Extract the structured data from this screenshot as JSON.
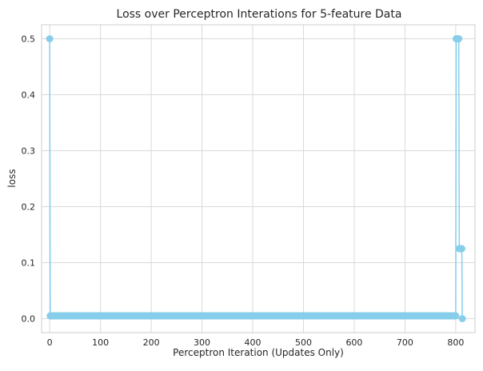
{
  "chart_data": {
    "type": "line",
    "title": "Loss over Perceptron Interations for 5-feature Data",
    "xlabel": "Perceptron Iteration (Updates Only)",
    "ylabel": "loss",
    "xlim": [
      -16,
      838
    ],
    "ylim": [
      -0.025,
      0.525
    ],
    "xticks": [
      0,
      100,
      200,
      300,
      400,
      500,
      600,
      700,
      800
    ],
    "yticks": [
      0.0,
      0.1,
      0.2,
      0.3,
      0.4,
      0.5
    ],
    "ytick_labels": [
      "0.0",
      "0.1",
      "0.2",
      "0.3",
      "0.4",
      "0.5"
    ],
    "grid": true,
    "legend": "none",
    "series": [
      {
        "color": "#87ceeb",
        "marker": "circle",
        "segments": [
          {
            "x_start": 0,
            "x_end": 0,
            "y": 0.5
          },
          {
            "x_start": 1,
            "x_end": 800,
            "y": 0.005
          },
          {
            "x_start": 801,
            "x_end": 806,
            "y": 0.5
          },
          {
            "x_start": 807,
            "x_end": 812,
            "y": 0.125
          },
          {
            "x_start": 813,
            "x_end": 813,
            "y": 0.0
          }
        ]
      }
    ]
  }
}
